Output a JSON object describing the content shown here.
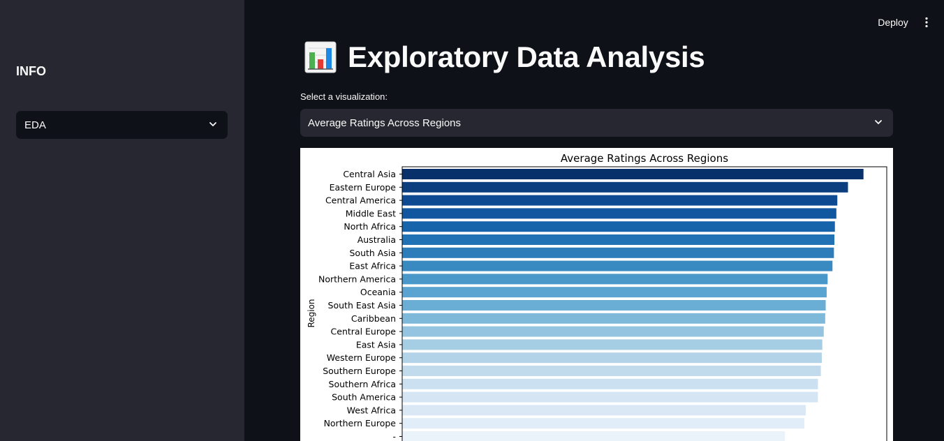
{
  "sidebar": {
    "title": "INFO",
    "select_value": "EDA"
  },
  "topbar": {
    "deploy_label": "Deploy",
    "menu_icon": "kebab-vertical-icon"
  },
  "main": {
    "title": "Exploratory Data Analysis",
    "title_icon": "bar-chart-emoji-icon",
    "select_label": "Select a visualization:",
    "select_value": "Average Ratings Across Regions"
  },
  "chart_data": {
    "type": "bar",
    "orientation": "horizontal",
    "title": "Average Ratings Across Regions",
    "ylabel": "Region",
    "xlabel": "",
    "xlim": [
      0,
      100
    ],
    "categories": [
      "Central Asia",
      "Eastern Europe",
      "Central America",
      "Middle East",
      "North Africa",
      "Australia",
      "South Asia",
      "East Africa",
      "Northern America",
      "Oceania",
      "South East Asia",
      "Caribbean",
      "Central Europe",
      "East Asia",
      "Western Europe",
      "Southern Europe",
      "Southern Africa",
      "South America",
      "West Africa",
      "Northern Europe",
      "-"
    ],
    "values": [
      95.2,
      92.0,
      89.8,
      89.6,
      89.3,
      89.2,
      89.1,
      88.8,
      87.8,
      87.6,
      87.4,
      87.3,
      87.0,
      86.7,
      86.6,
      86.4,
      85.8,
      85.8,
      83.3,
      83.0,
      79.0
    ],
    "colors": [
      "#08306b",
      "#0a3e7f",
      "#0d4a91",
      "#11579f",
      "#1764ab",
      "#2171b5",
      "#2d7dbb",
      "#3a8ac2",
      "#4a98c9",
      "#5ba3d0",
      "#6aaed6",
      "#7fb9da",
      "#94c4df",
      "#a5cde3",
      "#b3d4e8",
      "#c1dbec",
      "#cbe0f1",
      "#d5e5f4",
      "#dae8f6",
      "#e1edf8",
      "#eaf2fa"
    ],
    "grid": false
  }
}
